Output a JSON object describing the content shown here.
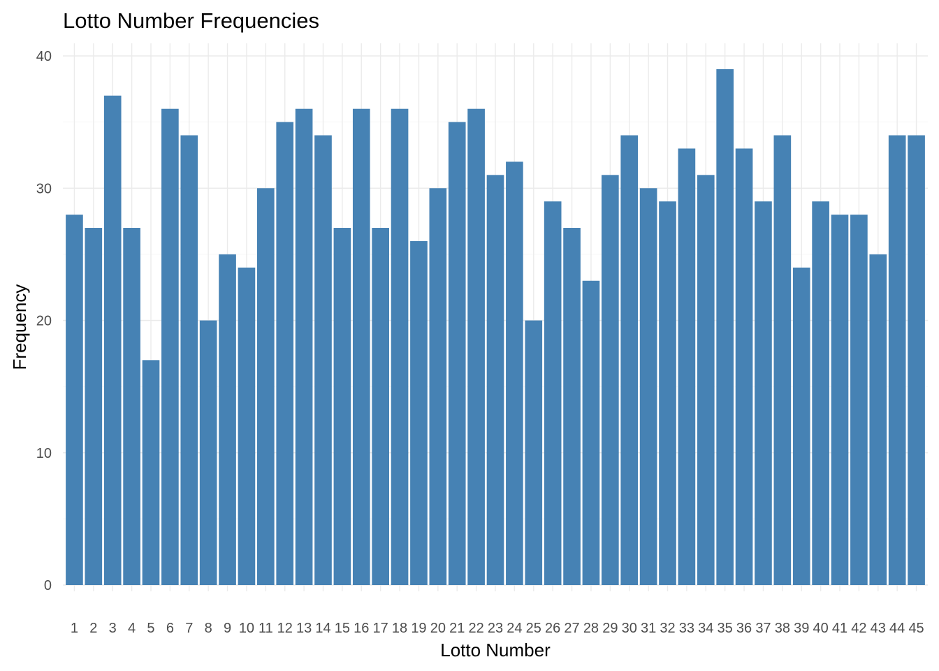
{
  "chart_data": {
    "type": "bar",
    "title": "Lotto Number Frequencies",
    "xlabel": "Lotto Number",
    "ylabel": "Frequency",
    "categories": [
      "1",
      "2",
      "3",
      "4",
      "5",
      "6",
      "7",
      "8",
      "9",
      "10",
      "11",
      "12",
      "13",
      "14",
      "15",
      "16",
      "17",
      "18",
      "19",
      "20",
      "21",
      "22",
      "23",
      "24",
      "25",
      "26",
      "27",
      "28",
      "29",
      "30",
      "31",
      "32",
      "33",
      "34",
      "35",
      "36",
      "37",
      "38",
      "39",
      "40",
      "41",
      "42",
      "43",
      "44",
      "45"
    ],
    "values": [
      28,
      27,
      37,
      27,
      17,
      36,
      34,
      20,
      25,
      24,
      30,
      35,
      36,
      34,
      27,
      36,
      27,
      36,
      26,
      30,
      35,
      36,
      31,
      32,
      20,
      29,
      27,
      23,
      31,
      34,
      30,
      29,
      33,
      31,
      39,
      33,
      29,
      34,
      24,
      29,
      28,
      28,
      25,
      34,
      34
    ],
    "ylim": [
      0,
      40
    ],
    "yticks": [
      0,
      10,
      20,
      30,
      40
    ],
    "grid": true,
    "legend": "none",
    "bar_color": "#4682B4"
  }
}
